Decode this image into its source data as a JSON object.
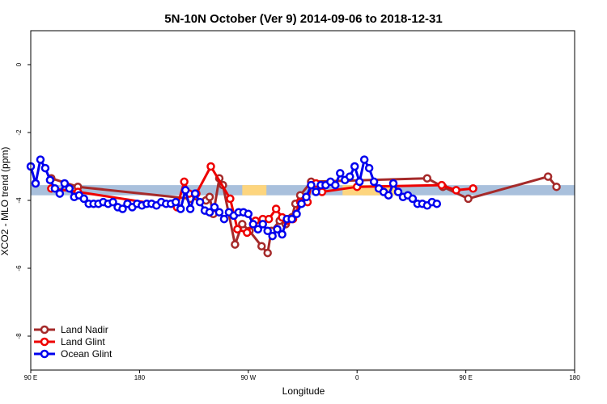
{
  "chart_data": {
    "type": "line",
    "title": "5N-10N October (Ver 9)   2014-09-06 to 2018-12-31",
    "xlabel": "Longitude",
    "ylabel": "XCO2 - MLO trend (ppm)",
    "x_ticks": [
      {
        "value": 90,
        "label": "90 E"
      },
      {
        "value": 180,
        "label": "180"
      },
      {
        "value": 270,
        "label": "90 W"
      },
      {
        "value": 360,
        "label": "0"
      },
      {
        "value": 450,
        "label": "90 E"
      },
      {
        "value": 540,
        "label": "180"
      }
    ],
    "xlim": [
      90,
      540
    ],
    "y_ticks": [
      0,
      -2,
      -4,
      -6,
      -8
    ],
    "ylim": [
      -9,
      1
    ],
    "band": {
      "y_min": -3.85,
      "y_max": -3.55,
      "color": "#a9c0dc"
    },
    "land_fill_color": "#fdd57e",
    "land_fill_regions": [
      [
        265,
        285
      ],
      [
        348,
        392
      ],
      [
        365,
        375
      ]
    ],
    "series": [
      {
        "name": "Land Nadir",
        "color": "#a52a2a",
        "points": [
          [
            107,
            -3.35
          ],
          [
            129,
            -3.6
          ],
          [
            222,
            -3.95
          ],
          [
            235,
            -4.0
          ],
          [
            238,
            -3.9
          ],
          [
            241,
            -4.4
          ],
          [
            246,
            -3.35
          ],
          [
            249,
            -3.55
          ],
          [
            259,
            -5.3
          ],
          [
            265,
            -4.7
          ],
          [
            271,
            -4.9
          ],
          [
            281,
            -5.35
          ],
          [
            286,
            -5.55
          ],
          [
            289,
            -4.9
          ],
          [
            296,
            -4.6
          ],
          [
            301,
            -4.7
          ],
          [
            306,
            -4.5
          ],
          [
            309,
            -4.1
          ],
          [
            313,
            -3.85
          ],
          [
            322,
            -3.45
          ],
          [
            418,
            -3.35
          ],
          [
            431,
            -3.6
          ],
          [
            452,
            -3.95
          ],
          [
            518,
            -3.3
          ],
          [
            525,
            -3.6
          ]
        ]
      },
      {
        "name": "Land Glint",
        "color": "#ee0000",
        "points": [
          [
            107,
            -3.65
          ],
          [
            129,
            -3.75
          ],
          [
            211,
            -4.2
          ],
          [
            217,
            -3.45
          ],
          [
            221,
            -3.8
          ],
          [
            227,
            -3.8
          ],
          [
            239,
            -3.0
          ],
          [
            255,
            -3.95
          ],
          [
            261,
            -4.85
          ],
          [
            269,
            -4.95
          ],
          [
            276,
            -4.6
          ],
          [
            282,
            -4.55
          ],
          [
            287,
            -4.55
          ],
          [
            293,
            -4.25
          ],
          [
            298,
            -4.5
          ],
          [
            302,
            -4.6
          ],
          [
            307,
            -4.55
          ],
          [
            313,
            -4.05
          ],
          [
            319,
            -4.05
          ],
          [
            322,
            -3.55
          ],
          [
            326,
            -3.5
          ],
          [
            331,
            -3.75
          ],
          [
            360,
            -3.6
          ],
          [
            430,
            -3.55
          ],
          [
            442,
            -3.7
          ],
          [
            456,
            -3.65
          ]
        ]
      },
      {
        "name": "Ocean Glint",
        "color": "#0000ee",
        "points": [
          [
            90,
            -3.0
          ],
          [
            94,
            -3.5
          ],
          [
            98,
            -2.8
          ],
          [
            102,
            -3.05
          ],
          [
            106,
            -3.4
          ],
          [
            110,
            -3.65
          ],
          [
            114,
            -3.8
          ],
          [
            118,
            -3.5
          ],
          [
            122,
            -3.65
          ],
          [
            126,
            -3.9
          ],
          [
            130,
            -3.85
          ],
          [
            134,
            -3.95
          ],
          [
            138,
            -4.1
          ],
          [
            142,
            -4.1
          ],
          [
            146,
            -4.1
          ],
          [
            150,
            -4.05
          ],
          [
            154,
            -4.1
          ],
          [
            158,
            -4.05
          ],
          [
            162,
            -4.2
          ],
          [
            166,
            -4.25
          ],
          [
            170,
            -4.1
          ],
          [
            174,
            -4.2
          ],
          [
            178,
            -4.1
          ],
          [
            182,
            -4.15
          ],
          [
            186,
            -4.1
          ],
          [
            190,
            -4.1
          ],
          [
            194,
            -4.15
          ],
          [
            198,
            -4.05
          ],
          [
            202,
            -4.1
          ],
          [
            206,
            -4.1
          ],
          [
            210,
            -4.05
          ],
          [
            214,
            -4.25
          ],
          [
            218,
            -3.7
          ],
          [
            222,
            -4.25
          ],
          [
            226,
            -3.8
          ],
          [
            230,
            -4.05
          ],
          [
            234,
            -4.3
          ],
          [
            238,
            -4.35
          ],
          [
            242,
            -4.2
          ],
          [
            246,
            -4.35
          ],
          [
            250,
            -4.55
          ],
          [
            254,
            -4.35
          ],
          [
            258,
            -4.45
          ],
          [
            262,
            -4.35
          ],
          [
            266,
            -4.35
          ],
          [
            270,
            -4.4
          ],
          [
            274,
            -4.7
          ],
          [
            278,
            -4.85
          ],
          [
            282,
            -4.7
          ],
          [
            286,
            -4.9
          ],
          [
            290,
            -5.05
          ],
          [
            294,
            -4.85
          ],
          [
            298,
            -5.0
          ],
          [
            302,
            -4.55
          ],
          [
            306,
            -4.55
          ],
          [
            310,
            -4.4
          ],
          [
            314,
            -4.1
          ],
          [
            318,
            -3.9
          ],
          [
            322,
            -3.55
          ],
          [
            326,
            -3.75
          ],
          [
            330,
            -3.55
          ],
          [
            334,
            -3.55
          ],
          [
            338,
            -3.45
          ],
          [
            342,
            -3.55
          ],
          [
            346,
            -3.2
          ],
          [
            350,
            -3.4
          ],
          [
            354,
            -3.3
          ],
          [
            358,
            -3.0
          ],
          [
            362,
            -3.45
          ],
          [
            366,
            -2.8
          ],
          [
            370,
            -3.05
          ],
          [
            374,
            -3.45
          ],
          [
            378,
            -3.65
          ],
          [
            382,
            -3.75
          ],
          [
            386,
            -3.85
          ],
          [
            390,
            -3.5
          ],
          [
            394,
            -3.75
          ],
          [
            398,
            -3.9
          ],
          [
            402,
            -3.85
          ],
          [
            406,
            -3.95
          ],
          [
            410,
            -4.1
          ],
          [
            414,
            -4.1
          ],
          [
            418,
            -4.15
          ],
          [
            422,
            -4.05
          ],
          [
            426,
            -4.1
          ]
        ]
      }
    ],
    "legend_position": "bottom-left",
    "grid": false
  }
}
